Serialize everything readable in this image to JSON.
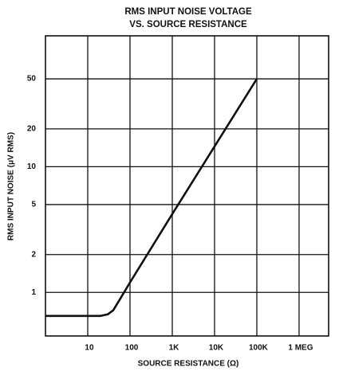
{
  "chart_data": {
    "type": "line",
    "title": [
      "RMS INPUT NOISE VOLTAGE",
      "VS. SOURCE RESISTANCE"
    ],
    "x_label": "SOURCE RESISTANCE (Ω)",
    "y_label": "RMS INPUT NOISE (μV RMS)",
    "x": [
      1,
      10,
      20,
      30,
      40,
      60,
      100,
      1000,
      10000,
      100000
    ],
    "series": [
      {
        "name": "RMS input noise",
        "color": "#111111",
        "values": [
          0.65,
          0.65,
          0.65,
          0.67,
          0.72,
          0.9,
          1.2,
          4.2,
          14.5,
          50
        ]
      }
    ],
    "xscale": "log",
    "yscale": "log",
    "xlim": [
      1,
      5000000
    ],
    "ylim": [
      0.45,
      110
    ],
    "xticks": [
      10,
      100,
      {
        "value": 1000,
        "label": "1K"
      },
      {
        "value": 10000,
        "label": "10K"
      },
      {
        "value": 100000,
        "label": "100K"
      },
      {
        "value": 1000000,
        "label": "1 MEG"
      }
    ],
    "yticks": [
      1,
      2,
      5,
      10,
      20,
      50
    ],
    "grid": true
  }
}
